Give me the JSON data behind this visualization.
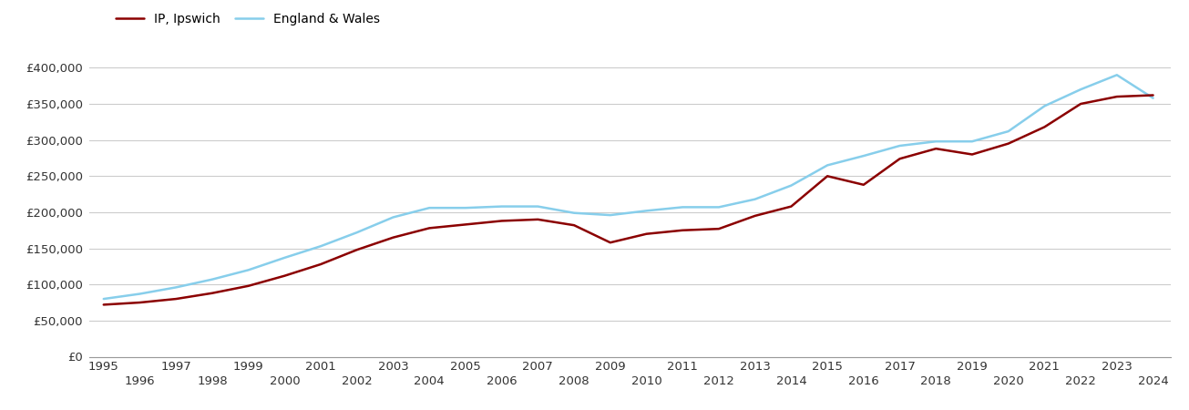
{
  "years": [
    1995,
    1996,
    1997,
    1998,
    1999,
    2000,
    2001,
    2002,
    2003,
    2004,
    2005,
    2006,
    2007,
    2008,
    2009,
    2010,
    2011,
    2012,
    2013,
    2014,
    2015,
    2016,
    2017,
    2018,
    2019,
    2020,
    2021,
    2022,
    2023,
    2024
  ],
  "ipswich": [
    72000,
    75000,
    80000,
    88000,
    98000,
    112000,
    128000,
    148000,
    165000,
    178000,
    183000,
    188000,
    190000,
    182000,
    158000,
    170000,
    175000,
    177000,
    195000,
    208000,
    250000,
    238000,
    274000,
    288000,
    280000,
    295000,
    318000,
    350000,
    360000,
    362000
  ],
  "england_wales": [
    80000,
    87000,
    96000,
    107000,
    120000,
    137000,
    153000,
    172000,
    193000,
    206000,
    206000,
    208000,
    208000,
    199000,
    196000,
    202000,
    207000,
    207000,
    218000,
    237000,
    265000,
    278000,
    292000,
    298000,
    298000,
    312000,
    347000,
    370000,
    390000,
    358000
  ],
  "ipswich_color": "#8B0000",
  "ew_color": "#87CEEB",
  "background_color": "#ffffff",
  "grid_color": "#cccccc",
  "legend_labels": [
    "IP, Ipswich",
    "England & Wales"
  ],
  "ylim_min": 0,
  "ylim_max": 420000,
  "yticks": [
    0,
    50000,
    100000,
    150000,
    200000,
    250000,
    300000,
    350000,
    400000
  ],
  "xlim_min": 1994.6,
  "xlim_max": 2024.5,
  "line_width": 1.8,
  "odd_years": [
    1995,
    1997,
    1999,
    2001,
    2003,
    2005,
    2007,
    2009,
    2011,
    2013,
    2015,
    2017,
    2019,
    2021,
    2023
  ],
  "even_years": [
    1996,
    1998,
    2000,
    2002,
    2004,
    2006,
    2008,
    2010,
    2012,
    2014,
    2016,
    2018,
    2020,
    2022,
    2024
  ]
}
